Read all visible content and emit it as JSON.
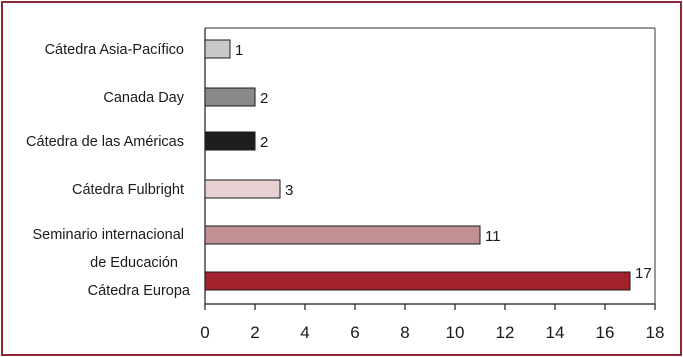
{
  "chart_data": {
    "type": "bar",
    "orientation": "horizontal",
    "title": "",
    "xlabel": "",
    "ylabel": "",
    "xlim": [
      0,
      18
    ],
    "xticks": [
      0,
      2,
      4,
      6,
      8,
      10,
      12,
      14,
      16,
      18
    ],
    "grid": false,
    "categories": [
      "Cátedra Asia-Pacífico",
      "Canada Day",
      "Cátedra de las Américas",
      "Cátedra Fulbright",
      "Seminario internacional de Educación",
      "Cátedra Europa"
    ],
    "values": [
      1,
      2,
      2,
      3,
      11,
      17
    ],
    "colors": [
      "#c8c8c8",
      "#8a8a8a",
      "#1e1e1e",
      "#e6d0d2",
      "#c09095",
      "#a3222e"
    ],
    "frame_color": "#8e2a36"
  }
}
